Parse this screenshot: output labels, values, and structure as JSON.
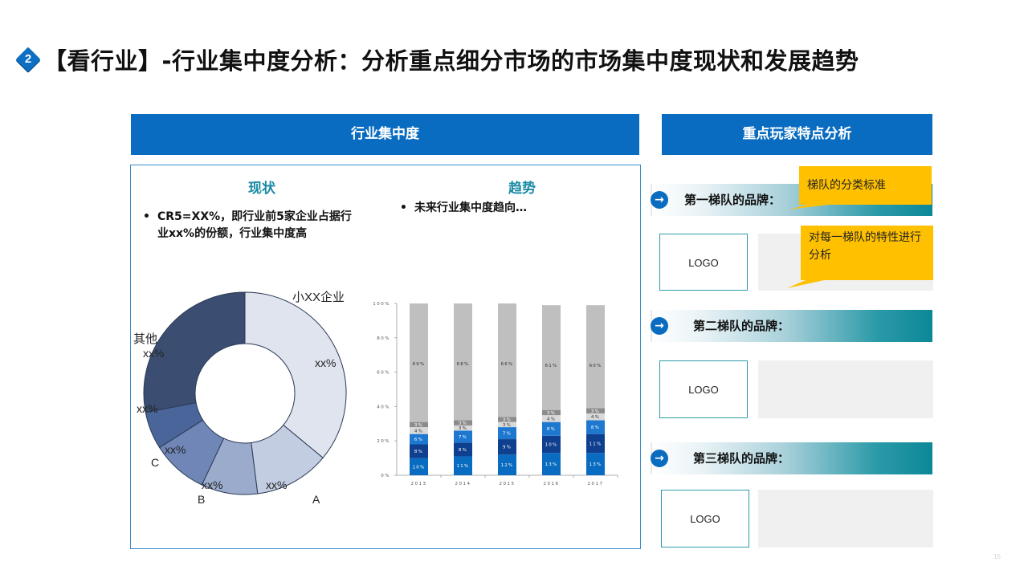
{
  "header": {
    "badge_number": "2",
    "title": "【看行业】-行业集中度分析：分析重点细分市场的市场集中度现状和发展趋势"
  },
  "left_band": {
    "title": "行业集中度"
  },
  "right_band": {
    "title": "重点玩家特点分析"
  },
  "status": {
    "heading": "现状",
    "bullet_line1": "CR5=XX%，即行业前5家企业占据行",
    "bullet_line2": "业xx%的份额，行业集中度高"
  },
  "trend": {
    "heading": "趋势",
    "bullet": "未来行业集中度趋向…"
  },
  "pie_labels": {
    "small": "小XX企业",
    "small_value": "xx%",
    "a_name": "A",
    "a_value": "xx%",
    "b_name": "B",
    "b_value": "xx%",
    "c_name": "C",
    "c_value": "xx%",
    "d_value": "xx%",
    "other_name": "其他",
    "other_value": "xx%"
  },
  "chart_data": [
    {
      "type": "pie",
      "labels": [
        "小XX企业",
        "A",
        "B",
        "C",
        "",
        "其他"
      ],
      "values": [
        36,
        12,
        9,
        9,
        6,
        28
      ],
      "colors": [
        "#dfe4ef",
        "#c3cde2",
        "#9aabcc",
        "#6f86b6",
        "#4a6599",
        "#3b4e71"
      ],
      "value_labels": [
        "xx%",
        "xx%",
        "xx%",
        "xx%",
        "xx%",
        "xx%"
      ]
    },
    {
      "type": "bar",
      "stacked": true,
      "categories": [
        "2013",
        "2014",
        "2015",
        "2016",
        "2017"
      ],
      "ylim": [
        0,
        100
      ],
      "yticks": [
        "0%",
        "20%",
        "40%",
        "60%",
        "80%",
        "100%"
      ],
      "series": [
        {
          "values": [
            10,
            11,
            12,
            13,
            13
          ],
          "labels": [
            "10%",
            "11%",
            "12%",
            "13%",
            "13%"
          ],
          "color": "#0a6cc0"
        },
        {
          "values": [
            8,
            8,
            9,
            10,
            11
          ],
          "labels": [
            "8%",
            "8%",
            "9%",
            "10%",
            "11%"
          ],
          "color": "#0f3f8f"
        },
        {
          "values": [
            6,
            7,
            7,
            8,
            8
          ],
          "labels": [
            "6%",
            "7%",
            "7%",
            "8%",
            "8%"
          ],
          "color": "#1e78d0"
        },
        {
          "values": [
            4,
            3,
            3,
            4,
            4
          ],
          "labels": [
            "4%",
            "3%",
            "3%",
            "4%",
            "4%"
          ],
          "color": "#d9d9d9"
        },
        {
          "values": [
            3,
            3,
            3,
            3,
            3
          ],
          "labels": [
            "3%",
            "3%",
            "3%",
            "3%",
            "3%"
          ],
          "color": "#8c8c8c"
        },
        {
          "values": [
            69,
            68,
            66,
            61,
            60
          ],
          "labels": [
            "69%",
            "68%",
            "66%",
            "61%",
            "60%"
          ],
          "color": "#bfbfbf"
        }
      ]
    }
  ],
  "tiers": [
    {
      "circle_icon": "→",
      "label": "第一梯队的品牌：",
      "logo": "LOGO"
    },
    {
      "circle_icon": "→",
      "label": "第二梯队的品牌：",
      "logo": "LOGO"
    },
    {
      "circle_icon": "→",
      "label": "第三梯队的品牌：",
      "logo": "LOGO"
    }
  ],
  "callouts": {
    "criteria": "梯队的分类标准",
    "analysis": "对每一梯队的特性进行分析"
  },
  "page_number": "15"
}
